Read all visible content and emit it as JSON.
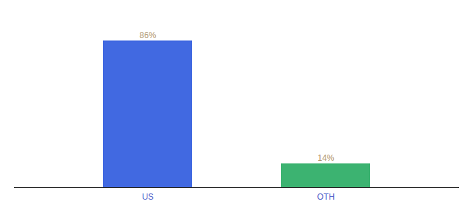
{
  "chart_data": {
    "type": "bar",
    "categories": [
      "US",
      "OTH"
    ],
    "values": [
      86,
      14
    ],
    "value_labels": [
      "86%",
      "14%"
    ],
    "colors": [
      "#4169E1",
      "#3CB371"
    ],
    "ylim": [
      0,
      100
    ],
    "data_labels": true,
    "tick_labels": "x",
    "grid": false
  }
}
